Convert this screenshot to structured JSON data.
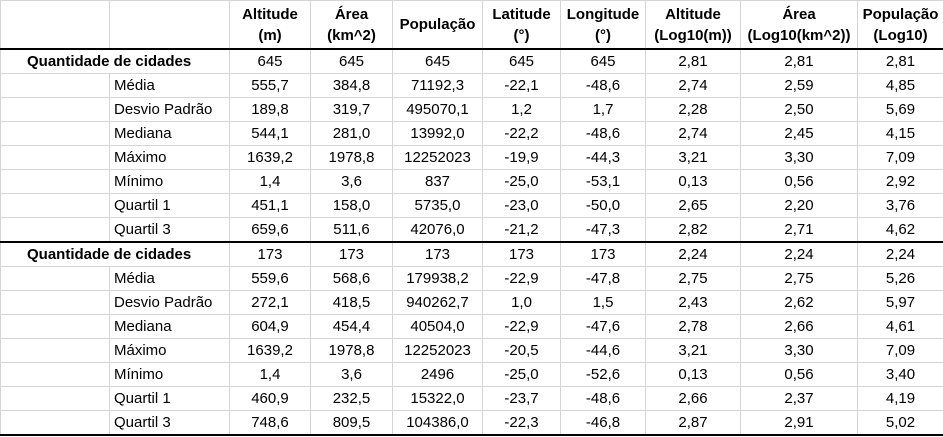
{
  "columns": [
    "",
    "",
    "Altitude (m)",
    "Área (km^2)",
    "População",
    "Latitude (°)",
    "Longitude (°)",
    "Altitude (Log10(m))",
    "Área (Log10(km^2))",
    "População (Log10)"
  ],
  "header_lines": [
    [
      "",
      ""
    ],
    [
      "",
      ""
    ],
    [
      "Altitude",
      "(m)"
    ],
    [
      "Área",
      "(km^2)"
    ],
    [
      "População",
      ""
    ],
    [
      "Latitude",
      "(°)"
    ],
    [
      "Longitude",
      "(°)"
    ],
    [
      "Altitude",
      "(Log10(m))"
    ],
    [
      "Área",
      "(Log10(km^2))"
    ],
    [
      "População",
      "(Log10)"
    ]
  ],
  "groups": [
    {
      "label": "Quantidade de cidades",
      "counts": [
        "645",
        "645",
        "645",
        "645",
        "645",
        "2,81",
        "2,81",
        "2,81"
      ],
      "rows": [
        {
          "stat": "Média",
          "values": [
            "555,7",
            "384,8",
            "71192,3",
            "-22,1",
            "-48,6",
            "2,74",
            "2,59",
            "4,85"
          ]
        },
        {
          "stat": "Desvio Padrão",
          "values": [
            "189,8",
            "319,7",
            "495070,1",
            "1,2",
            "1,7",
            "2,28",
            "2,50",
            "5,69"
          ]
        },
        {
          "stat": "Mediana",
          "values": [
            "544,1",
            "281,0",
            "13992,0",
            "-22,2",
            "-48,6",
            "2,74",
            "2,45",
            "4,15"
          ]
        },
        {
          "stat": "Máximo",
          "values": [
            "1639,2",
            "1978,8",
            "12252023",
            "-19,9",
            "-44,3",
            "3,21",
            "3,30",
            "7,09"
          ]
        },
        {
          "stat": "Mínimo",
          "values": [
            "1,4",
            "3,6",
            "837",
            "-25,0",
            "-53,1",
            "0,13",
            "0,56",
            "2,92"
          ]
        },
        {
          "stat": "Quartil 1",
          "values": [
            "451,1",
            "158,0",
            "5735,0",
            "-23,0",
            "-50,0",
            "2,65",
            "2,20",
            "3,76"
          ]
        },
        {
          "stat": "Quartil 3",
          "values": [
            "659,6",
            "511,6",
            "42076,0",
            "-21,2",
            "-47,3",
            "2,82",
            "2,71",
            "4,62"
          ]
        }
      ]
    },
    {
      "label": "Quantidade de cidades",
      "counts": [
        "173",
        "173",
        "173",
        "173",
        "173",
        "2,24",
        "2,24",
        "2,24"
      ],
      "rows": [
        {
          "stat": "Média",
          "values": [
            "559,6",
            "568,6",
            "179938,2",
            "-22,9",
            "-47,8",
            "2,75",
            "2,75",
            "5,26"
          ]
        },
        {
          "stat": "Desvio Padrão",
          "values": [
            "272,1",
            "418,5",
            "940262,7",
            "1,0",
            "1,5",
            "2,43",
            "2,62",
            "5,97"
          ]
        },
        {
          "stat": "Mediana",
          "values": [
            "604,9",
            "454,4",
            "40504,0",
            "-22,9",
            "-47,6",
            "2,78",
            "2,66",
            "4,61"
          ]
        },
        {
          "stat": "Máximo",
          "values": [
            "1639,2",
            "1978,8",
            "12252023",
            "-20,5",
            "-44,6",
            "3,21",
            "3,30",
            "7,09"
          ]
        },
        {
          "stat": "Mínimo",
          "values": [
            "1,4",
            "3,6",
            "2496",
            "-25,0",
            "-52,6",
            "0,13",
            "0,56",
            "3,40"
          ]
        },
        {
          "stat": "Quartil 1",
          "values": [
            "460,9",
            "232,5",
            "15322,0",
            "-23,7",
            "-48,6",
            "2,66",
            "2,37",
            "4,19"
          ]
        },
        {
          "stat": "Quartil 3",
          "values": [
            "748,6",
            "809,5",
            "104386,0",
            "-22,3",
            "-46,8",
            "2,87",
            "2,91",
            "5,02"
          ]
        }
      ]
    }
  ]
}
